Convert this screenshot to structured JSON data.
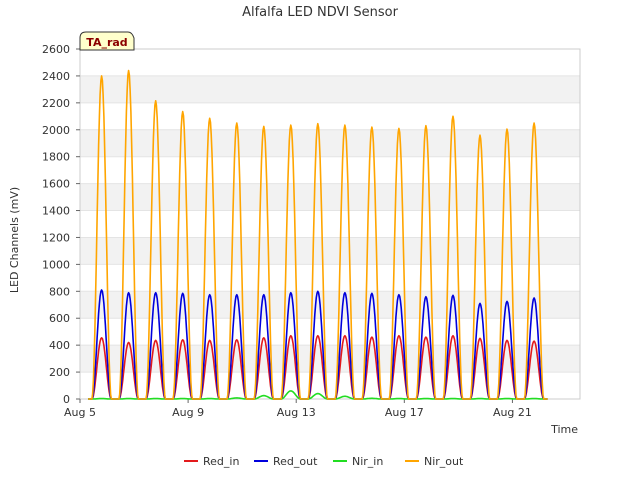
{
  "chart_data": {
    "type": "line",
    "title": "Alfalfa LED NDVI Sensor",
    "xlabel": "Time",
    "ylabel": "LED Channels (mV)",
    "badge": "TA_rad",
    "x_range_days": [
      5,
      23.5
    ],
    "ylim": [
      0,
      2600
    ],
    "x_ticks": [
      {
        "label": "Aug 5",
        "day": 5
      },
      {
        "label": "Aug 9",
        "day": 9
      },
      {
        "label": "Aug 13",
        "day": 13
      },
      {
        "label": "Aug 17",
        "day": 17
      },
      {
        "label": "Aug 21",
        "day": 21
      }
    ],
    "y_ticks": [
      0,
      200,
      400,
      600,
      800,
      1000,
      1200,
      1400,
      1600,
      1800,
      2000,
      2200,
      2400,
      2600
    ],
    "peak_days": [
      5.8,
      6.8,
      7.8,
      8.8,
      9.8,
      10.8,
      11.8,
      12.8,
      13.8,
      14.8,
      15.8,
      16.8,
      17.8,
      18.8,
      19.8,
      20.8,
      21.8
    ],
    "series": [
      {
        "name": "Red_in",
        "color": "#e31a1c",
        "peaks": [
          455,
          420,
          435,
          440,
          435,
          440,
          455,
          470,
          470,
          470,
          460,
          470,
          460,
          470,
          450,
          435,
          430
        ]
      },
      {
        "name": "Red_out",
        "color": "#0000dd",
        "peaks": [
          810,
          790,
          790,
          785,
          775,
          775,
          775,
          790,
          800,
          790,
          785,
          775,
          760,
          770,
          710,
          725,
          750
        ]
      },
      {
        "name": "Nir_in",
        "color": "#22dd22",
        "peaks": [
          3,
          3,
          3,
          3,
          3,
          8,
          25,
          60,
          40,
          20,
          5,
          3,
          3,
          3,
          3,
          3,
          3
        ]
      },
      {
        "name": "Nir_out",
        "color": "#ffa500",
        "peaks": [
          2400,
          2440,
          2215,
          2135,
          2085,
          2050,
          2025,
          2035,
          2045,
          2035,
          2020,
          2010,
          2030,
          2100,
          1960,
          2005,
          2050
        ]
      }
    ]
  }
}
